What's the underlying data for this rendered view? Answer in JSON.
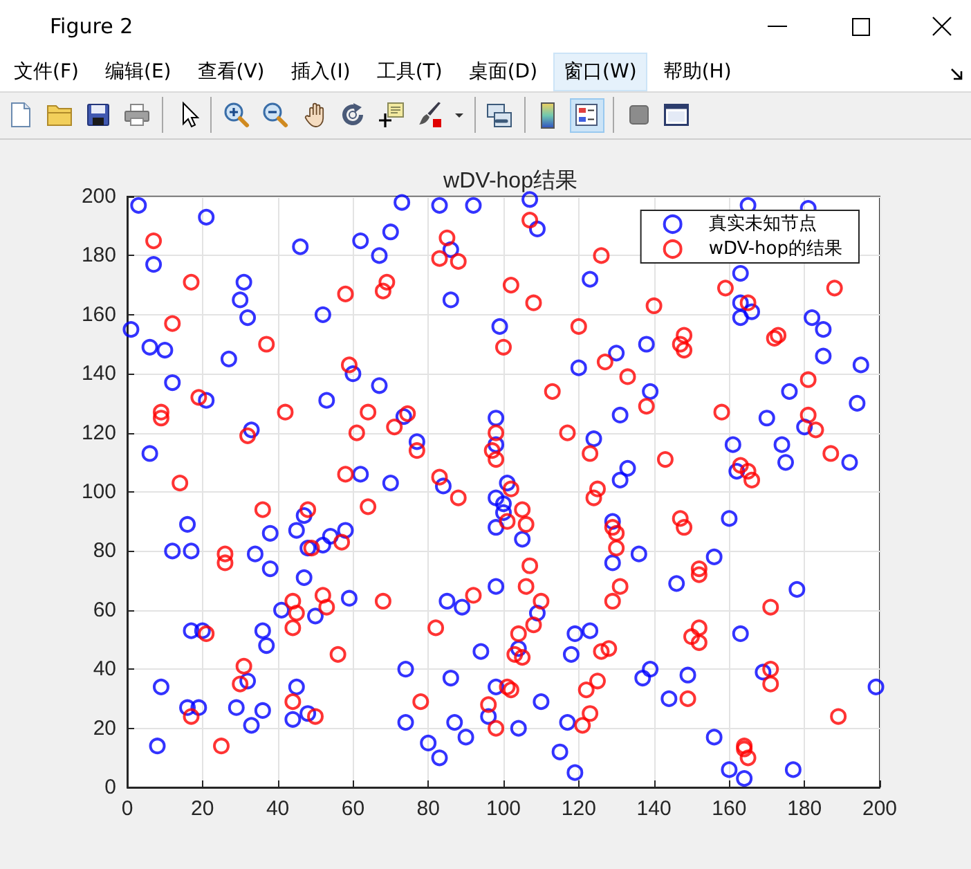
{
  "chart_data": {
    "type": "scatter",
    "title": "wDV-hop结果",
    "annotations": [
      "Figure 2",
      "文件(F)",
      "编辑(E)",
      "查看(V)",
      "插入(I)",
      "工具(T)",
      "桌面(D)",
      "窗口(W)",
      "帮助(H)"
    ],
    "series": [
      {
        "name": "真实未知节点",
        "color": "#0000ff",
        "x": [
          3,
          21,
          46,
          73,
          83,
          92,
          62,
          70,
          67,
          7,
          86,
          31,
          30,
          86,
          32,
          52,
          1,
          6,
          10,
          99,
          27,
          12,
          21,
          53,
          60,
          67,
          33,
          73.5,
          98,
          98,
          77,
          6,
          62,
          70,
          84,
          101,
          107,
          109,
          165,
          181,
          123,
          163,
          163,
          163,
          166,
          182,
          185,
          185,
          195,
          120,
          130,
          138,
          139,
          131,
          124,
          133,
          131,
          176,
          170,
          180,
          174,
          175,
          194,
          192,
          161,
          162,
          98,
          100,
          100,
          98,
          16,
          12,
          17,
          38,
          45,
          47,
          48,
          52,
          54,
          58,
          34,
          38,
          47,
          41,
          50,
          59,
          17,
          20,
          36,
          37,
          9,
          16,
          19,
          29,
          32,
          36,
          33,
          45,
          44,
          48,
          8,
          74,
          86,
          74,
          87,
          90,
          80,
          83,
          85,
          89,
          98,
          94,
          98,
          96,
          105,
          109,
          104,
          110,
          104,
          129,
          129,
          136,
          119,
          123,
          118,
          117,
          115,
          119,
          139,
          137,
          149,
          144,
          146,
          156,
          160,
          163,
          169,
          178,
          156,
          160,
          164,
          177,
          199
        ],
        "values": [
          197,
          193,
          183,
          198,
          197,
          197,
          185,
          188,
          180,
          177,
          182,
          171,
          165,
          165,
          159,
          160,
          155,
          149,
          148,
          156,
          145,
          137,
          131,
          131,
          140,
          136,
          121,
          125.5,
          125,
          116,
          117,
          113,
          106,
          103,
          102,
          103,
          199,
          189,
          197,
          196,
          172,
          174,
          164,
          159,
          161,
          159,
          155,
          146,
          143,
          142,
          147,
          150,
          134,
          126,
          118,
          108,
          104,
          134,
          125,
          122,
          116,
          110,
          130,
          110,
          116,
          107,
          98,
          96,
          93,
          88,
          89,
          80,
          80,
          86,
          87,
          92,
          81,
          82,
          85,
          87,
          79,
          74,
          71,
          60,
          58,
          64,
          53,
          53,
          53,
          48,
          34,
          27,
          27,
          27,
          36,
          26,
          21,
          34,
          23,
          25,
          14,
          40,
          37,
          22,
          22,
          17,
          15,
          10,
          63,
          61,
          68,
          46,
          34,
          24,
          84,
          59,
          47,
          29,
          20,
          90,
          76,
          79,
          52,
          53,
          45,
          22,
          12,
          5,
          40,
          37,
          38,
          30,
          69,
          78,
          91,
          52,
          39,
          67,
          17,
          6,
          3,
          6,
          34
        ]
      },
      {
        "name": "wDV-hop的结果",
        "color": "#ff0000",
        "x": [
          7,
          17,
          12,
          37,
          58,
          68,
          69,
          85,
          83,
          88,
          102,
          100,
          19,
          9,
          9,
          42,
          59,
          64,
          71,
          74.5,
          61,
          32,
          77,
          98,
          97,
          98,
          14,
          58,
          83,
          107,
          126,
          108,
          120,
          140,
          159,
          165,
          188,
          147,
          148,
          148,
          172,
          173,
          127,
          133,
          113,
          138,
          117,
          123,
          143,
          158,
          181,
          181,
          183,
          187,
          163,
          165,
          166,
          102,
          125,
          124,
          88,
          101,
          36,
          48,
          64,
          49,
          57,
          26,
          26,
          44,
          45,
          44,
          52,
          53,
          68,
          82,
          92,
          21,
          56,
          31,
          30,
          44,
          17,
          50,
          25,
          78,
          96,
          98,
          101,
          102,
          105,
          106,
          107,
          106,
          110,
          104,
          108,
          103,
          105,
          129,
          130,
          130,
          131,
          129,
          126,
          128,
          122,
          125,
          123,
          121,
          147,
          148,
          152,
          152,
          152,
          150,
          152,
          149,
          171,
          171,
          171,
          189,
          164,
          164,
          165
        ],
        "values": [
          185,
          171,
          157,
          150,
          167,
          168,
          171,
          186,
          179,
          178,
          170,
          149,
          132,
          127,
          125,
          127,
          143,
          127,
          122,
          126.5,
          120,
          119,
          114,
          120,
          114,
          111,
          103,
          106,
          105,
          192,
          180,
          164,
          156,
          163,
          169,
          164,
          169,
          150,
          153,
          148,
          152,
          153,
          144,
          139,
          134,
          129,
          120,
          113,
          111,
          127,
          138,
          126,
          121,
          113,
          109,
          107,
          104,
          101,
          101,
          98,
          98,
          90,
          94,
          94,
          95,
          81,
          83,
          79,
          76,
          63,
          59,
          54,
          65,
          61,
          63,
          54,
          65,
          52,
          45,
          41,
          35,
          29,
          24,
          24,
          14,
          29,
          28,
          20,
          34,
          33,
          94,
          89,
          75,
          68,
          63,
          52,
          55,
          45,
          44,
          88,
          86,
          81,
          68,
          63,
          46,
          47,
          33,
          36,
          25,
          21,
          91,
          88,
          74,
          72,
          54,
          51,
          49,
          30,
          61,
          40,
          35,
          24,
          14,
          13,
          10
        ]
      }
    ],
    "xlim": [
      0,
      200
    ],
    "ylim": [
      0,
      200
    ],
    "xticks": [
      0,
      20,
      40,
      60,
      80,
      100,
      120,
      140,
      160,
      180,
      200
    ],
    "yticks": [
      0,
      20,
      40,
      60,
      80,
      100,
      120,
      140,
      160,
      180,
      200
    ],
    "grid": true,
    "legend": "top right",
    "marker": "circle"
  }
}
